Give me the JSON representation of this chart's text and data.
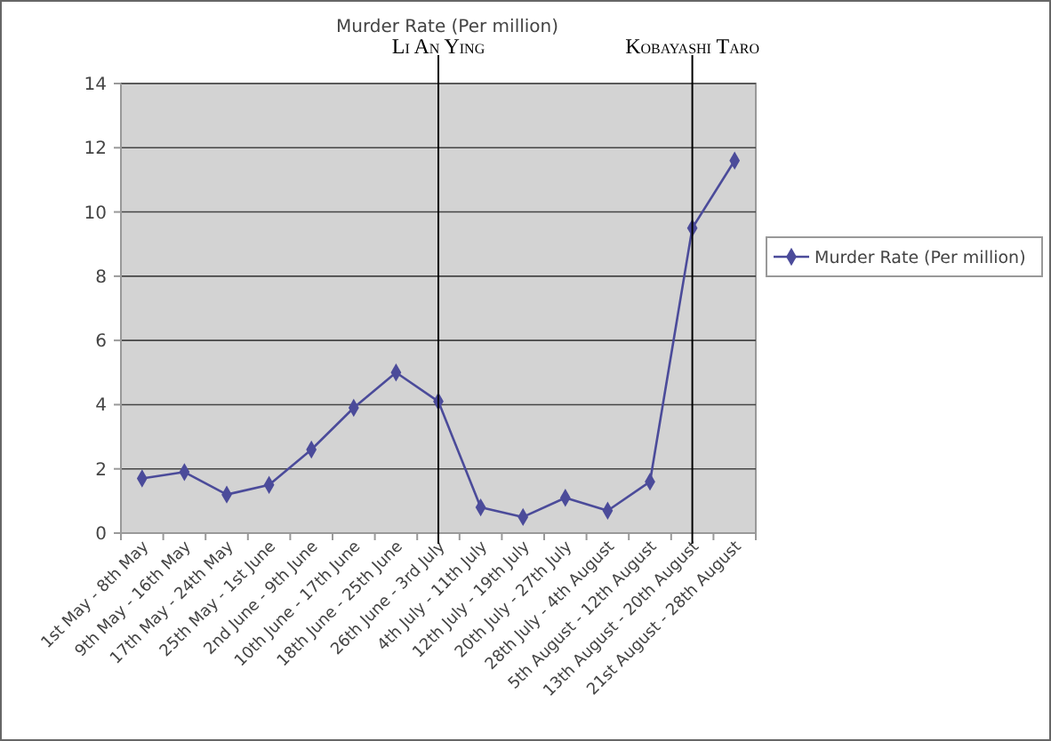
{
  "chart_data": {
    "type": "line",
    "title": "Murder Rate (Per million)",
    "categories": [
      "1st May - 8th May",
      "9th May - 16th May",
      "17th May - 24th May",
      "25th May - 1st June",
      "2nd June - 9th June",
      "10th June - 17th June",
      "18th June - 25th June",
      "26th June - 3rd July",
      "4th July - 11th July",
      "12th July - 19th July",
      "20th July - 27th July",
      "28th July - 4th August",
      "5th August - 12th August",
      "13th August - 20th August",
      "21st August - 28th August"
    ],
    "series": [
      {
        "name": "Murder Rate (Per million)",
        "color": "#4b4b9a",
        "values": [
          1.7,
          1.9,
          1.2,
          1.5,
          2.6,
          3.9,
          5.0,
          4.1,
          0.8,
          0.5,
          1.1,
          0.7,
          1.6,
          9.5,
          11.6
        ]
      }
    ],
    "ylim": [
      0,
      14
    ],
    "yticks": [
      0,
      2,
      4,
      6,
      8,
      10,
      12,
      14
    ],
    "grid": "y",
    "legend": "right",
    "marker": "diamond",
    "ref_lines": [
      {
        "axis": "x",
        "value": "26th June - 3rd July",
        "label": "Li An Ying",
        "color": "#000000"
      },
      {
        "axis": "x",
        "value": "13th August - 20th August",
        "label": "Kobayashi Taro",
        "color": "#000000"
      }
    ]
  }
}
